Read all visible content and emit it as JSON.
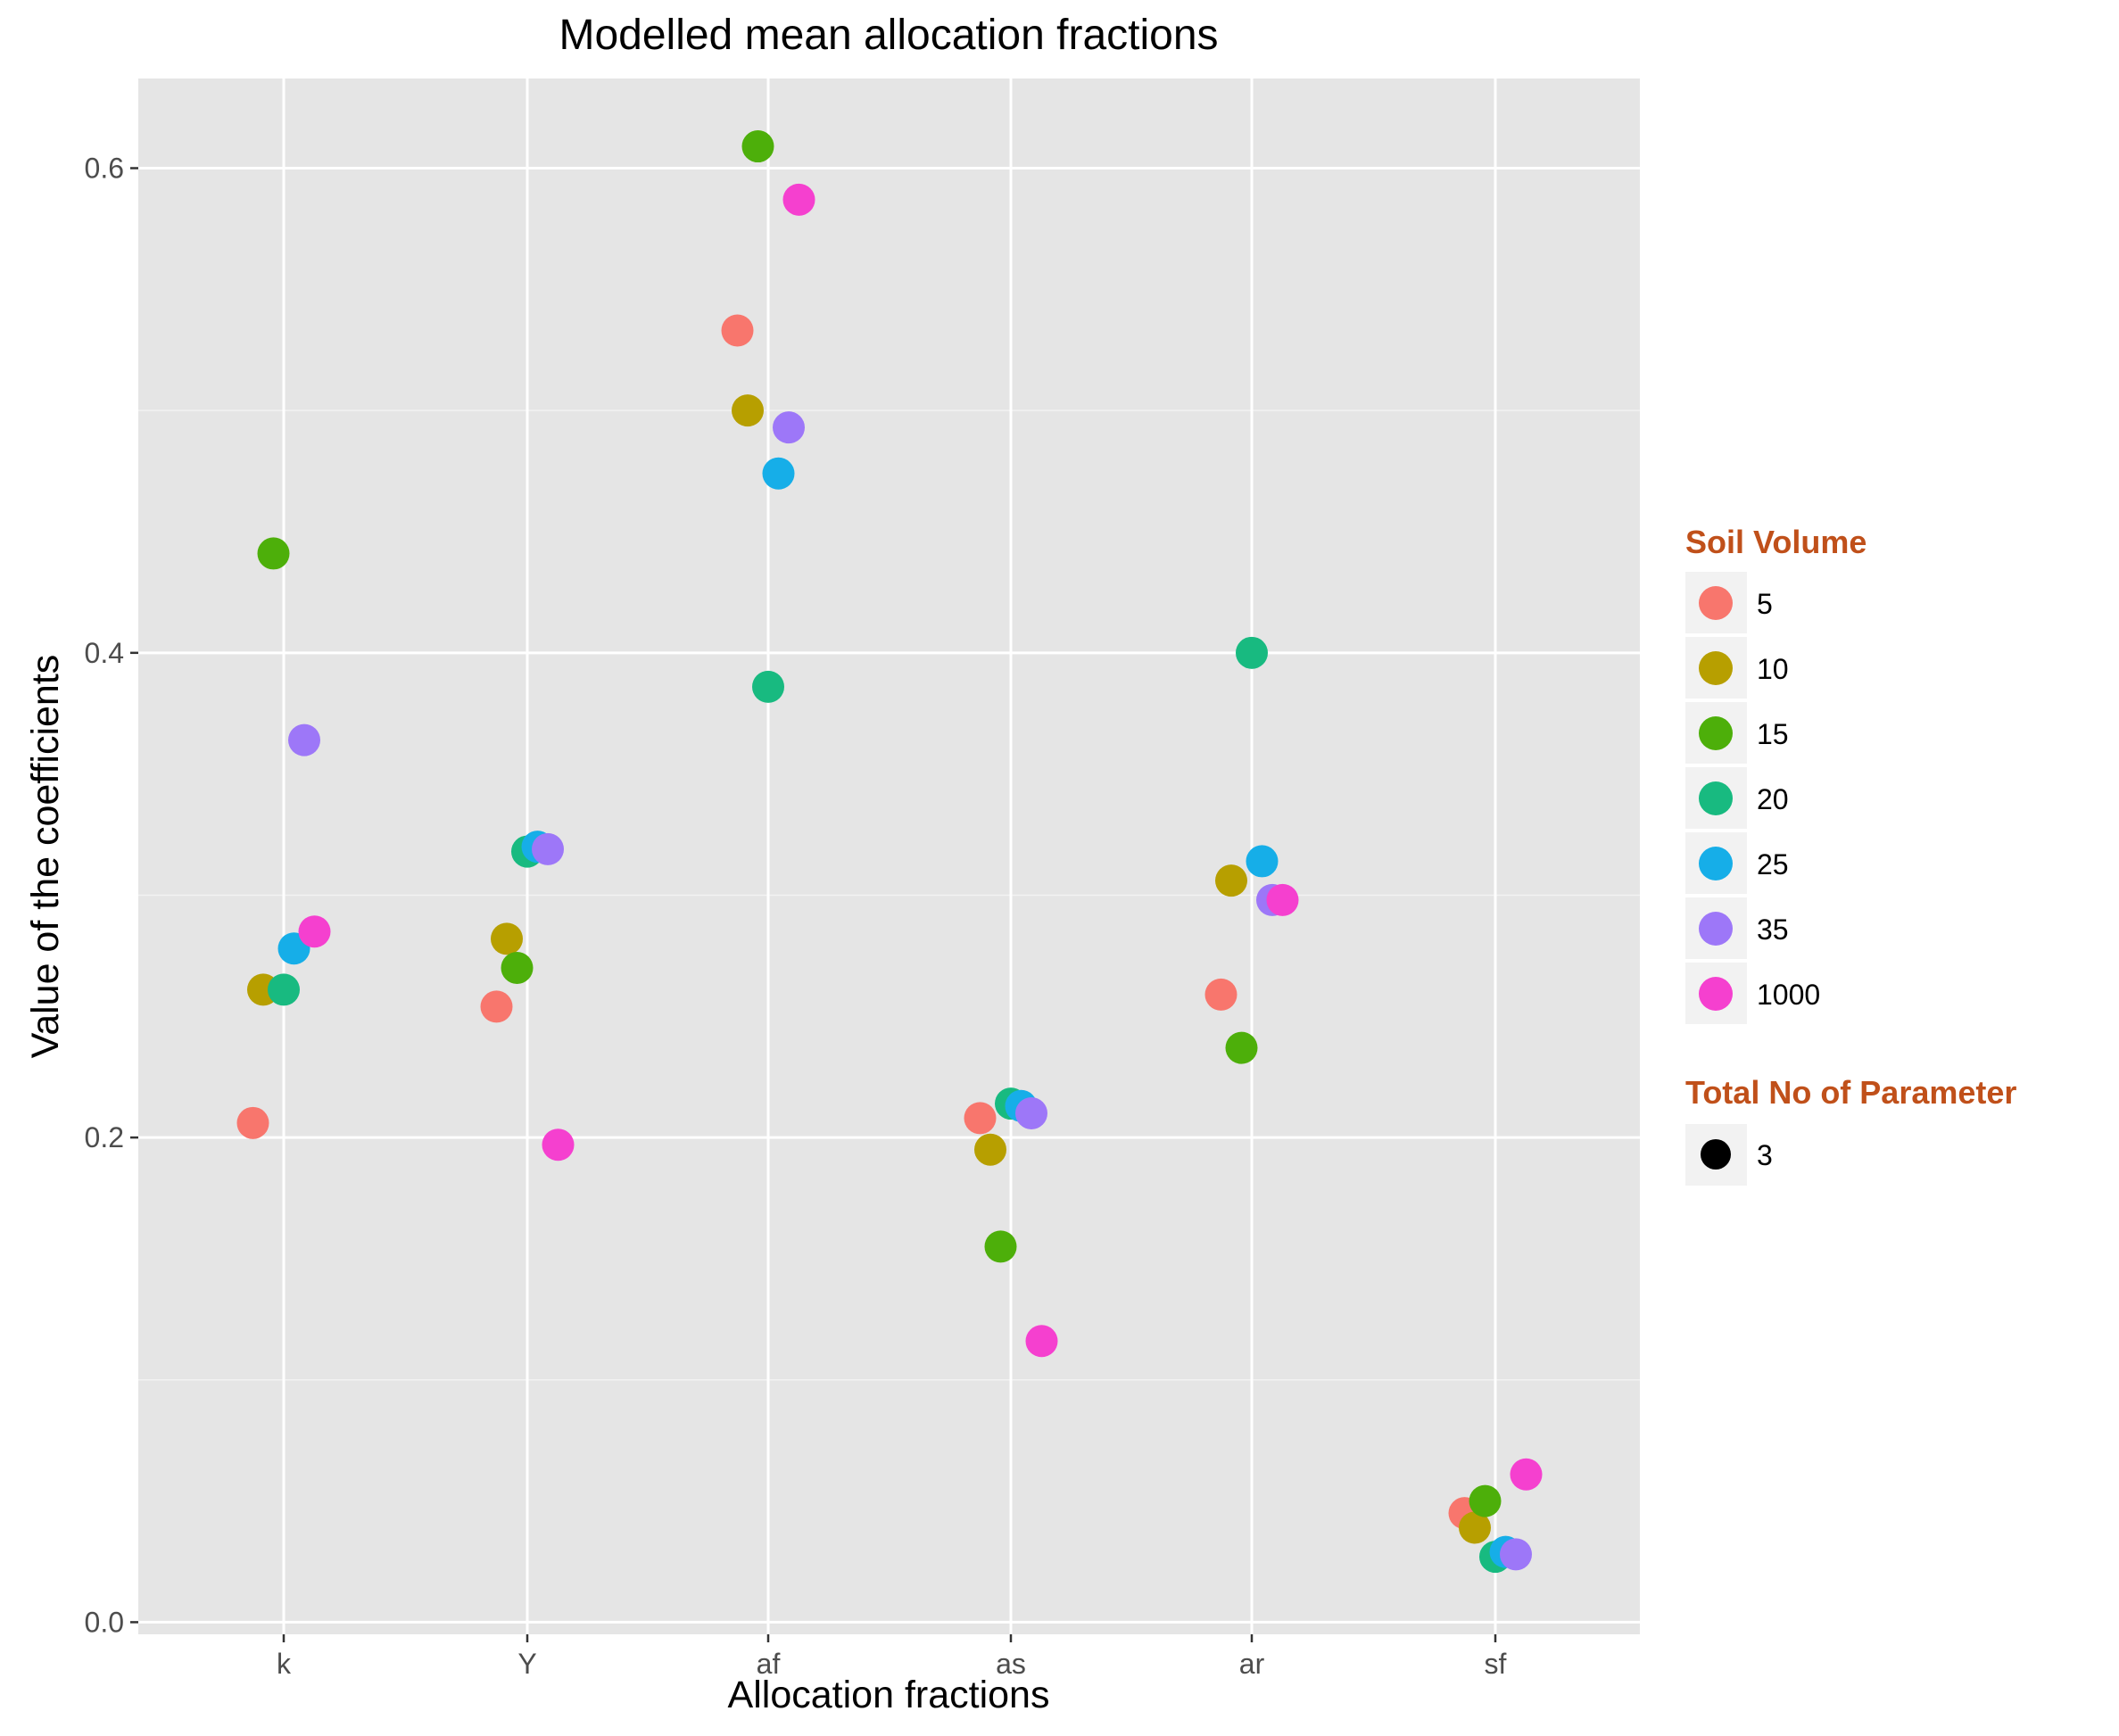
{
  "chart_data": {
    "type": "scatter",
    "title": "Modelled mean allocation fractions",
    "xlabel": "Allocation fractions",
    "ylabel": "Value of the coefficients",
    "categories": [
      "k",
      "Y",
      "af",
      "as",
      "ar",
      "sf"
    ],
    "ylim": [
      -0.005,
      0.637
    ],
    "yticks": [
      0.0,
      0.2,
      0.4,
      0.6
    ],
    "yticklabels": [
      "0.0",
      "0.2",
      "0.4",
      "0.6"
    ],
    "grid": true,
    "panel_background": "#e5e5e5",
    "legend_position": "right",
    "legend": {
      "color_title": "Soil Volume",
      "shape_title": "Total No of Parameter",
      "shape_items": [
        "3"
      ],
      "title_color": "#c0501a"
    },
    "series": [
      {
        "name": "5",
        "color": "#f8766d",
        "points": [
          {
            "x": "k",
            "y": 0.206
          },
          {
            "x": "Y",
            "y": 0.254
          },
          {
            "x": "af",
            "y": 0.533
          },
          {
            "x": "as",
            "y": 0.208
          },
          {
            "x": "ar",
            "y": 0.259
          },
          {
            "x": "sf",
            "y": 0.045
          }
        ]
      },
      {
        "name": "10",
        "color": "#b79f00",
        "points": [
          {
            "x": "k",
            "y": 0.261
          },
          {
            "x": "Y",
            "y": 0.282
          },
          {
            "x": "af",
            "y": 0.5
          },
          {
            "x": "as",
            "y": 0.195
          },
          {
            "x": "ar",
            "y": 0.306
          },
          {
            "x": "sf",
            "y": 0.039
          }
        ]
      },
      {
        "name": "15",
        "color": "#4daf0a",
        "points": [
          {
            "x": "k",
            "y": 0.441
          },
          {
            "x": "Y",
            "y": 0.27
          },
          {
            "x": "af",
            "y": 0.609
          },
          {
            "x": "as",
            "y": 0.155
          },
          {
            "x": "ar",
            "y": 0.237
          },
          {
            "x": "sf",
            "y": 0.05
          }
        ]
      },
      {
        "name": "20",
        "color": "#18ba80",
        "points": [
          {
            "x": "k",
            "y": 0.261
          },
          {
            "x": "Y",
            "y": 0.318
          },
          {
            "x": "af",
            "y": 0.386
          },
          {
            "x": "as",
            "y": 0.214
          },
          {
            "x": "ar",
            "y": 0.4
          },
          {
            "x": "sf",
            "y": 0.027
          }
        ]
      },
      {
        "name": "25",
        "color": "#16aee8",
        "points": [
          {
            "x": "k",
            "y": 0.278
          },
          {
            "x": "Y",
            "y": 0.32
          },
          {
            "x": "af",
            "y": 0.474
          },
          {
            "x": "as",
            "y": 0.213
          },
          {
            "x": "ar",
            "y": 0.314
          },
          {
            "x": "sf",
            "y": 0.029
          }
        ]
      },
      {
        "name": "35",
        "color": "#9d77f8",
        "points": [
          {
            "x": "k",
            "y": 0.364
          },
          {
            "x": "Y",
            "y": 0.319
          },
          {
            "x": "af",
            "y": 0.493
          },
          {
            "x": "as",
            "y": 0.21
          },
          {
            "x": "ar",
            "y": 0.298
          },
          {
            "x": "sf",
            "y": 0.028
          }
        ]
      },
      {
        "name": "1000",
        "color": "#f540cf",
        "points": [
          {
            "x": "k",
            "y": 0.285
          },
          {
            "x": "Y",
            "y": 0.197
          },
          {
            "x": "af",
            "y": 0.587
          },
          {
            "x": "as",
            "y": 0.116
          },
          {
            "x": "ar",
            "y": 0.298
          },
          {
            "x": "sf",
            "y": 0.061
          }
        ]
      }
    ]
  }
}
